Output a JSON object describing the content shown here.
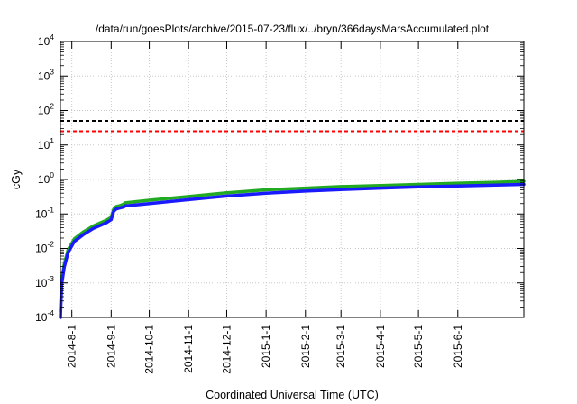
{
  "chart_data": {
    "type": "line",
    "title": "/data/run/goesPlots/archive/2015-07-23/flux/../bryn/366daysMarsAccumulated.plot",
    "xlabel": "Coordinated Universal Time (UTC)",
    "ylabel": "cGy",
    "yscale": "log",
    "ylim": [
      0.0001,
      10000
    ],
    "xlim": [
      "2014-07-23",
      "2015-07-23"
    ],
    "x_tick_labels": [
      "2014-8-1",
      "2014-9-1",
      "2014-10-1",
      "2014-11-1",
      "2014-12-1",
      "2015-1-1",
      "2015-2-1",
      "2015-3-1",
      "2015-4-1",
      "2015-5-1",
      "2015-6-1"
    ],
    "y_ticks": [
      {
        "base": "10",
        "exp": "-4"
      },
      {
        "base": "10",
        "exp": "-3"
      },
      {
        "base": "10",
        "exp": "-2"
      },
      {
        "base": "10",
        "exp": "-1"
      },
      {
        "base": "10",
        "exp": "0"
      },
      {
        "base": "10",
        "exp": "1"
      },
      {
        "base": "10",
        "exp": "2"
      },
      {
        "base": "10",
        "exp": "3"
      },
      {
        "base": "10",
        "exp": "4"
      }
    ],
    "grid": true,
    "reference_lines": [
      {
        "value": 50,
        "color": "#000000",
        "style": "dashed"
      },
      {
        "value": 25,
        "color": "#ff0000",
        "style": "dashed"
      }
    ],
    "series": [
      {
        "color": "#22aa22",
        "x": [
          "2014-07-23",
          "2014-07-24",
          "2014-07-26",
          "2014-07-29",
          "2014-08-03",
          "2014-08-10",
          "2014-08-18",
          "2014-08-28",
          "2014-09-01",
          "2014-09-03",
          "2014-09-05",
          "2014-09-08",
          "2014-09-11",
          "2014-09-12",
          "2014-10-01",
          "2014-11-01",
          "2014-12-01",
          "2015-01-01",
          "2015-02-01",
          "2015-03-01",
          "2015-04-01",
          "2015-05-01",
          "2015-06-01",
          "2015-07-01",
          "2015-07-23"
        ],
        "values": [
          0.00015,
          0.0012,
          0.0035,
          0.009,
          0.019,
          0.03,
          0.045,
          0.065,
          0.08,
          0.14,
          0.165,
          0.175,
          0.195,
          0.21,
          0.25,
          0.32,
          0.41,
          0.5,
          0.56,
          0.62,
          0.67,
          0.72,
          0.78,
          0.83,
          0.88
        ]
      },
      {
        "color": "#1a1aff",
        "x": [
          "2014-07-23",
          "2014-07-24",
          "2014-07-26",
          "2014-07-29",
          "2014-08-03",
          "2014-08-10",
          "2014-08-18",
          "2014-08-28",
          "2014-09-01",
          "2014-09-03",
          "2014-09-05",
          "2014-09-08",
          "2014-09-11",
          "2014-09-12",
          "2014-10-01",
          "2014-11-01",
          "2014-12-01",
          "2015-01-01",
          "2015-02-01",
          "2015-03-01",
          "2015-04-01",
          "2015-05-01",
          "2015-06-01",
          "2015-07-01",
          "2015-07-23"
        ],
        "values": [
          0.0001,
          0.0009,
          0.0028,
          0.0075,
          0.016,
          0.025,
          0.038,
          0.055,
          0.068,
          0.12,
          0.14,
          0.15,
          0.16,
          0.17,
          0.2,
          0.26,
          0.33,
          0.4,
          0.46,
          0.51,
          0.56,
          0.61,
          0.65,
          0.69,
          0.72
        ]
      }
    ]
  }
}
